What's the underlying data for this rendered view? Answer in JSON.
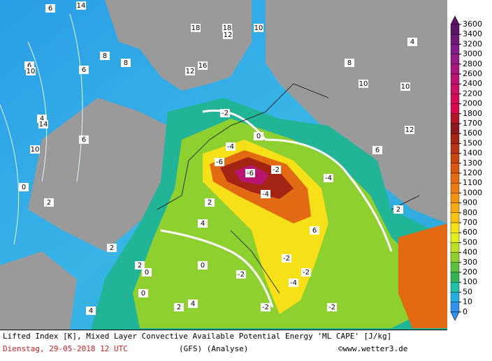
{
  "colorbar": {
    "ticks": [
      3600,
      3400,
      3200,
      3000,
      2800,
      2600,
      2400,
      2200,
      2000,
      1800,
      1700,
      1600,
      1500,
      1400,
      1300,
      1200,
      1100,
      1000,
      900,
      800,
      700,
      600,
      500,
      400,
      300,
      200,
      100,
      50,
      10,
      0
    ],
    "colors": [
      "#5c1466",
      "#6e1878",
      "#821c88",
      "#961c8a",
      "#a8187c",
      "#b81470",
      "#c81064",
      "#d40c58",
      "#dc0a4c",
      "#b01828",
      "#8c1a1a",
      "#a42414",
      "#b83412",
      "#c84612",
      "#d85812",
      "#e26a12",
      "#ea7c12",
      "#f29012",
      "#f6aa12",
      "#f8c414",
      "#f6e018",
      "#e2ee1c",
      "#bcdf24",
      "#8ed030",
      "#5ec040",
      "#34b454",
      "#22c0a8",
      "#22aee0",
      "#3492ee"
    ]
  },
  "map_labels": [
    "14",
    "6",
    "6",
    "18",
    "12",
    "16",
    "18",
    "12",
    "10",
    "10",
    "8",
    "6",
    "4",
    "2",
    "0",
    "-2",
    "-4",
    "-6",
    "-6",
    "-4",
    "-2",
    "0",
    "2",
    "4",
    "14",
    "10",
    "6",
    "8",
    "10",
    "4",
    "2",
    "-2",
    "-4",
    "-2",
    "0",
    "-2",
    "-4",
    "-2",
    "2",
    "4",
    "10",
    "12",
    "6",
    "2",
    "0",
    "-2",
    "0",
    "2",
    "4",
    "6",
    "8"
  ],
  "footer": {
    "line1": "Lifted Index [K], Mixed Layer Convective Available Potential Energy 'ML CAPE' [J/kg]",
    "date": "Dienstag, 29-05-2018  12 UTC",
    "model": "(GFS)  (Analyse)",
    "site": "©www.wetter3.de"
  }
}
